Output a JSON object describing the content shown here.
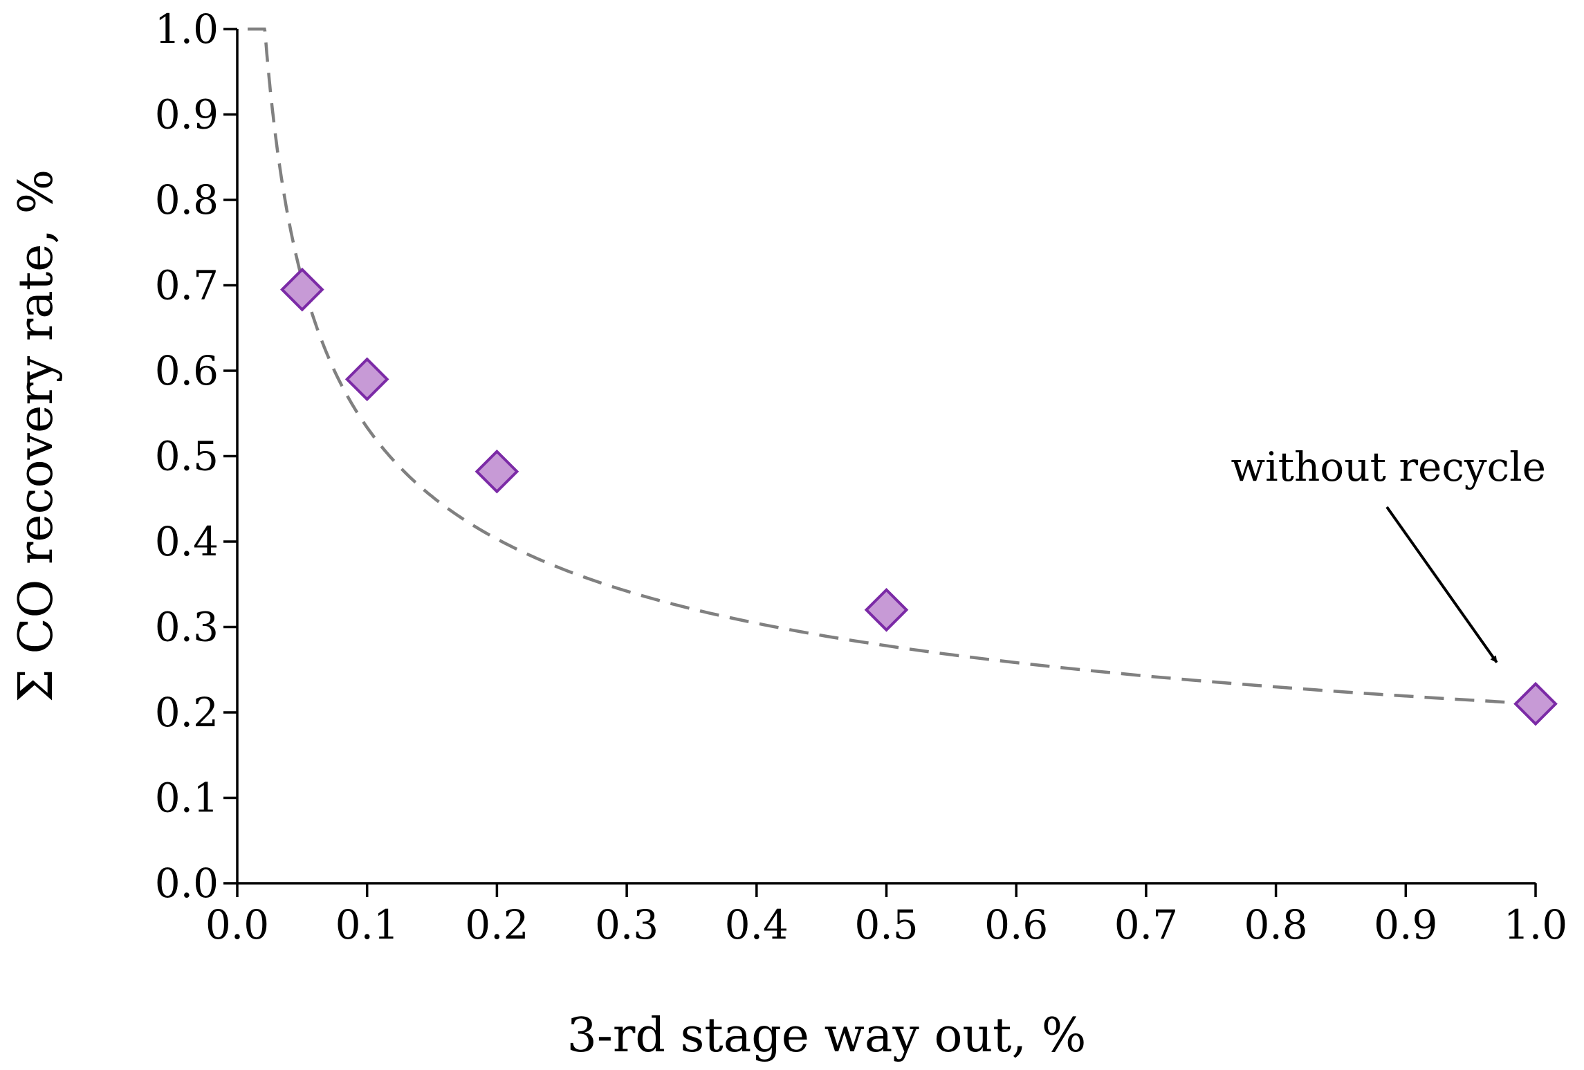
{
  "chart_data": {
    "type": "scatter",
    "xlabel": "3-rd stage way out, %",
    "ylabel": "Σ CO recovery rate, %",
    "xlim": [
      0.0,
      1.0
    ],
    "ylim": [
      0.0,
      1.0
    ],
    "xticks": [
      "0.0",
      "0.1",
      "0.2",
      "0.3",
      "0.4",
      "0.5",
      "0.6",
      "0.7",
      "0.8",
      "0.9",
      "1.0"
    ],
    "yticks": [
      "0.0",
      "0.1",
      "0.2",
      "0.3",
      "0.4",
      "0.5",
      "0.6",
      "0.7",
      "0.8",
      "0.9",
      "1.0"
    ],
    "grid": false,
    "series": [
      {
        "marker": "diamond",
        "color": "#c79ad6",
        "edge_color": "#7b2aa6",
        "x": [
          0.05,
          0.1,
          0.2,
          0.5,
          1.0
        ],
        "y": [
          0.695,
          0.59,
          0.482,
          0.32,
          0.21
        ]
      }
    ],
    "trendline": {
      "style": "dashed",
      "color": "#808080",
      "type": "power",
      "coefficient": 0.21,
      "exponent": -0.405,
      "x_range": [
        0.008,
        1.0
      ]
    },
    "annotations": [
      {
        "text": "without recycle",
        "arrow_to": {
          "x": 0.985,
          "y": 0.21
        }
      }
    ]
  }
}
